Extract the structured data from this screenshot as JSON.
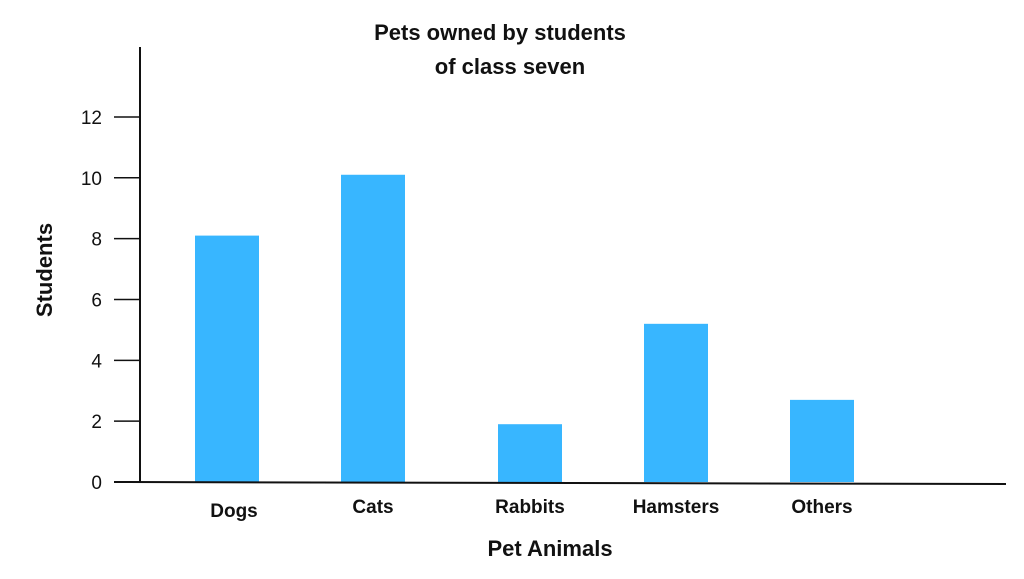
{
  "chart_data": {
    "type": "bar",
    "title_lines": [
      "Pets owned by students",
      "of class seven"
    ],
    "xlabel": "Pet Animals",
    "ylabel": "Students",
    "categories": [
      "Dogs",
      "Cats",
      "Rabbits",
      "Hamsters",
      "Others"
    ],
    "values": [
      8.1,
      10.1,
      1.9,
      5.2,
      2.7
    ],
    "y_ticks": [
      "0",
      "2",
      "4",
      "6",
      "8",
      "10",
      "12"
    ],
    "ylim": [
      0,
      14.3
    ],
    "grid": false,
    "bar_color": "#38b6ff",
    "axis_color": "#111111"
  }
}
